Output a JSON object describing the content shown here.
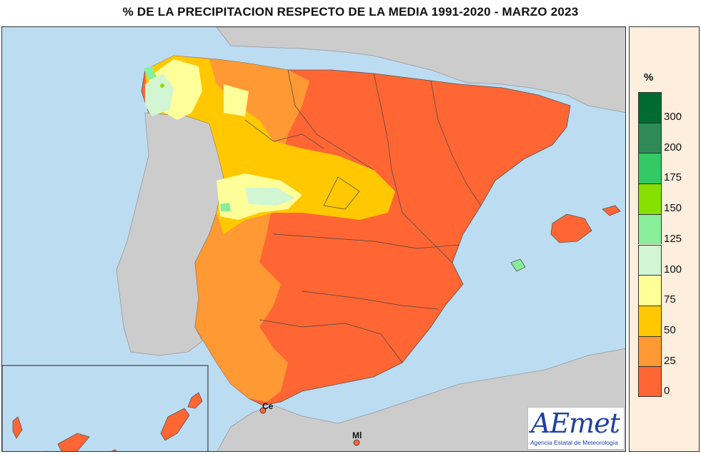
{
  "title": "% DE LA PRECIPITACION RESPECTO DE LA MEDIA 1991-2020  - MARZO 2023",
  "legend": {
    "unit": "%",
    "ticks": [
      "300",
      "200",
      "175",
      "150",
      "125",
      "100",
      "75",
      "50",
      "25",
      "0"
    ],
    "colors": [
      "#006b2e",
      "#2e8b57",
      "#33c965",
      "#88e000",
      "#88ee99",
      "#d2f5d2",
      "#ffff9a",
      "#ffc800",
      "#ff9933",
      "#ff6633"
    ]
  },
  "map": {
    "land_color": "#cccccc",
    "sea_color": "#bcdcf2",
    "labels": {
      "ceuta": "Ce",
      "melilla": "Ml"
    }
  },
  "logo": {
    "word": "AEmet",
    "subtitle": "Agencia Estatal de Meteorología"
  }
}
